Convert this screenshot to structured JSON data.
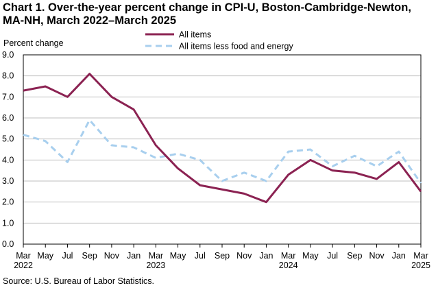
{
  "chart_data": {
    "type": "line",
    "title_line1": "Chart 1. Over-the-year percent change in CPI-U, Boston-Cambridge-Newton,",
    "title_line2": "MA-NH, March 2022–March 2025",
    "ylabel": "Percent change",
    "ylim": [
      0,
      9
    ],
    "yticks": [
      "0.0",
      "1.0",
      "2.0",
      "3.0",
      "4.0",
      "5.0",
      "6.0",
      "7.0",
      "8.0",
      "9.0"
    ],
    "xticks": [
      "Mar",
      "May",
      "Jul",
      "Sep",
      "Nov",
      "Jan",
      "Mar",
      "May",
      "Jul",
      "Sep",
      "Nov",
      "Jan",
      "Mar",
      "May",
      "Jul",
      "Sep",
      "Nov",
      "Jan",
      "Mar"
    ],
    "year_labels": [
      {
        "index": 0,
        "label": "2022"
      },
      {
        "index": 6,
        "label": "2023"
      },
      {
        "index": 12,
        "label": "2024"
      },
      {
        "index": 18,
        "label": "2025"
      }
    ],
    "x": [
      "Mar 2022",
      "May 2022",
      "Jul 2022",
      "Sep 2022",
      "Nov 2022",
      "Jan 2023",
      "Mar 2023",
      "May 2023",
      "Jul 2023",
      "Sep 2023",
      "Nov 2023",
      "Jan 2024",
      "Mar 2024",
      "May 2024",
      "Jul 2024",
      "Sep 2024",
      "Nov 2024",
      "Jan 2025",
      "Mar 2025"
    ],
    "series": [
      {
        "name": "All items",
        "color": "#8b2252",
        "style": "solid",
        "values": [
          7.3,
          7.5,
          7.0,
          8.1,
          7.0,
          6.4,
          4.7,
          3.6,
          2.8,
          2.6,
          2.4,
          2.0,
          3.3,
          4.0,
          3.5,
          3.4,
          3.1,
          3.9,
          2.5
        ]
      },
      {
        "name": "All items less food and energy",
        "color": "#a8cfee",
        "style": "dashed",
        "values": [
          5.2,
          4.9,
          3.9,
          5.9,
          4.7,
          4.6,
          4.1,
          4.3,
          4.0,
          3.0,
          3.4,
          3.0,
          4.4,
          4.5,
          3.7,
          4.2,
          3.7,
          4.4,
          2.9
        ]
      }
    ],
    "grid": true,
    "legend_position": "top-center"
  },
  "source": "Source: U.S. Bureau of Labor Statistics."
}
